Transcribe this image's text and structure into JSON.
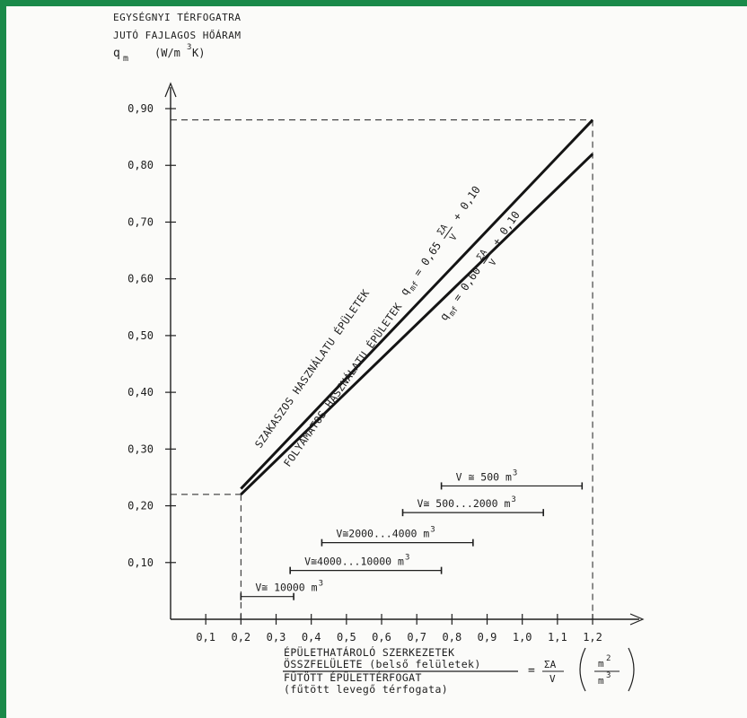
{
  "chart_data": {
    "type": "line",
    "ytitle": [
      "EGYSÉGNYI TÉRFOGATRA",
      "JUTÓ FAJLAGOS HŐÁRAM",
      "q",
      "m",
      "(W/m",
      "3",
      "K)"
    ],
    "xtitle": {
      "line1": "ÉPÜLETHATÁROLÓ SZERKEZETEK",
      "line2": "ÖSSZFELÜLETE (belső felületek)",
      "line3": "FŰTÖTT ÉPÜLETTÉRFOGAT",
      "line4": "(fűtött levegő térfogata)",
      "ratio_eq": "=",
      "ratio_num": "ΣA",
      "ratio_den": "V",
      "unit_num": "m",
      "unit_num_exp": "2",
      "unit_den": "m",
      "unit_den_exp": "3"
    },
    "x_ticks": [
      {
        "v": 0.1,
        "label": "0,1"
      },
      {
        "v": 0.2,
        "label": "0,2"
      },
      {
        "v": 0.3,
        "label": "0,3"
      },
      {
        "v": 0.4,
        "label": "0,4"
      },
      {
        "v": 0.5,
        "label": "0,5"
      },
      {
        "v": 0.6,
        "label": "0,6"
      },
      {
        "v": 0.7,
        "label": "0,7"
      },
      {
        "v": 0.8,
        "label": "0,8"
      },
      {
        "v": 0.9,
        "label": "0,9"
      },
      {
        "v": 1.0,
        "label": "1,0"
      },
      {
        "v": 1.1,
        "label": "1,1"
      },
      {
        "v": 1.2,
        "label": "1,2"
      }
    ],
    "y_ticks": [
      {
        "v": 0.1,
        "label": "0,10"
      },
      {
        "v": 0.2,
        "label": "0,20"
      },
      {
        "v": 0.3,
        "label": "0,30"
      },
      {
        "v": 0.4,
        "label": "0,40"
      },
      {
        "v": 0.5,
        "label": "0,50"
      },
      {
        "v": 0.6,
        "label": "0,60"
      },
      {
        "v": 0.7,
        "label": "0,70"
      },
      {
        "v": 0.8,
        "label": "0,80"
      },
      {
        "v": 0.9,
        "label": "0,90"
      }
    ],
    "xlim": [
      0,
      1.2
    ],
    "ylim": [
      0,
      0.9
    ],
    "series": [
      {
        "name": "SZAKASZOS HASZNÁLATU ÉPÜLETEK",
        "formula": {
          "lhs": "q",
          "sub": "mf",
          "eq": "= 0,65",
          "num": "ΣA",
          "den": "V",
          "tail": "+ 0,10"
        },
        "x": [
          0.2,
          1.2
        ],
        "y": [
          0.23,
          0.88
        ]
      },
      {
        "name": "FOLYAMATOS HASZNÁLATU ÉPÜLETEK",
        "formula": {
          "lhs": "q",
          "sub": "mf",
          "eq": "= 0,60",
          "num": "ΣA",
          "den": "V",
          "tail": "+ 0,10"
        },
        "x": [
          0.2,
          1.2
        ],
        "y": [
          0.22,
          0.82
        ]
      }
    ],
    "ranges": [
      {
        "label": "V ≅ 500 m",
        "exp": "3",
        "x0": 0.77,
        "x1": 1.17,
        "y": 0.235
      },
      {
        "label": "V≅ 500...2000 m",
        "exp": "3",
        "x0": 0.66,
        "x1": 1.06,
        "y": 0.188
      },
      {
        "label": "V≅2000...4000 m",
        "exp": "3",
        "x0": 0.43,
        "x1": 0.86,
        "y": 0.135
      },
      {
        "label": "V≅4000...10000 m",
        "exp": "3",
        "x0": 0.34,
        "x1": 0.77,
        "y": 0.086
      },
      {
        "label": "V≅ 10000 m",
        "exp": "3",
        "x0": 0.2,
        "x1": 0.35,
        "y": 0.04
      }
    ],
    "reference_lines": [
      {
        "x": 0.2,
        "y": 0.22
      },
      {
        "x": 1.2,
        "y": 0.88
      }
    ]
  }
}
